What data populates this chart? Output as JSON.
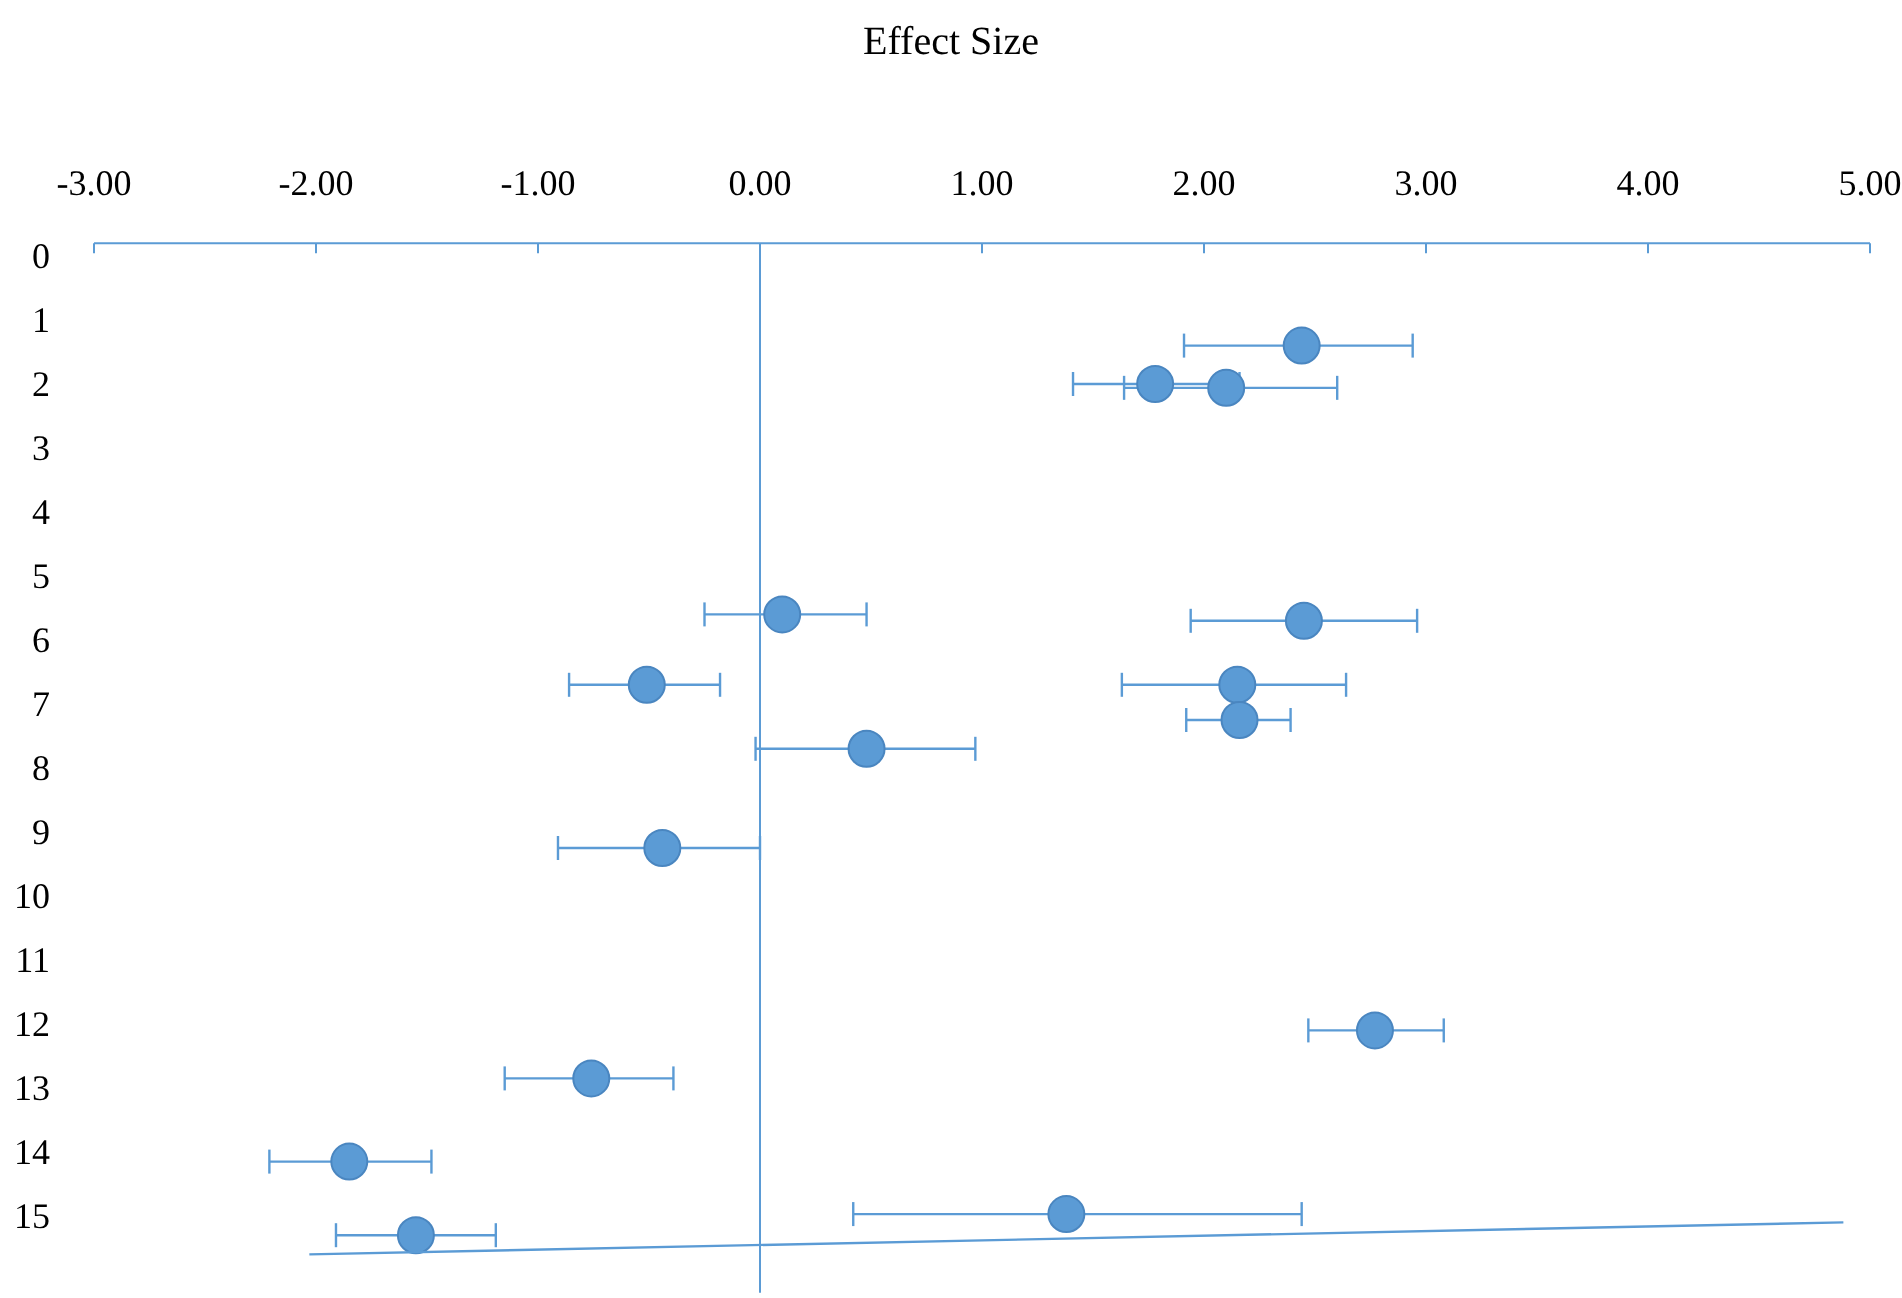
{
  "chart_data": {
    "type": "bubble",
    "title": "Effect Size",
    "xlim": [
      -3,
      5
    ],
    "xticks": [
      {
        "value": -3,
        "label": "-3.00"
      },
      {
        "value": -2,
        "label": "-2.00"
      },
      {
        "value": -1,
        "label": "-1.00"
      },
      {
        "value": 0,
        "label": "0.00"
      },
      {
        "value": 1,
        "label": "1.00"
      },
      {
        "value": 2,
        "label": "2.00"
      },
      {
        "value": 3,
        "label": "3.00"
      },
      {
        "value": 4,
        "label": "4.00"
      },
      {
        "value": 5,
        "label": "5.00"
      }
    ],
    "ylim": [
      16.2,
      -0.2
    ],
    "yticks": [
      0,
      1,
      2,
      3,
      4,
      5,
      6,
      7,
      8,
      9,
      10,
      11,
      12,
      13,
      14,
      15
    ],
    "grid": false,
    "ref_lines": [
      {
        "axis": "x",
        "value": 0,
        "color": "#5b9bd5"
      }
    ],
    "series": [
      {
        "color": "#5b9bd5",
        "x": [
          2.44,
          1.78,
          2.1,
          0.1,
          2.45,
          -0.51,
          2.15,
          2.16,
          0.48,
          -0.44,
          2.77,
          -0.76,
          -1.85,
          1.38,
          -1.55
        ],
        "values": [
          1.4,
          2.0,
          2.06,
          5.6,
          5.7,
          6.7,
          6.7,
          7.25,
          7.7,
          9.25,
          12.1,
          12.85,
          14.15,
          14.97,
          15.3
        ],
        "xerrors": [
          [
            1.91,
            2.94
          ],
          [
            1.41,
            2.16
          ],
          [
            1.64,
            2.6
          ],
          [
            -0.25,
            0.48
          ],
          [
            1.94,
            2.96
          ],
          [
            -0.86,
            -0.18
          ],
          [
            1.63,
            2.64
          ],
          [
            1.92,
            2.39
          ],
          [
            -0.02,
            0.97
          ],
          [
            -0.91,
            0
          ],
          [
            2.47,
            3.08
          ],
          [
            -1.15,
            -0.39
          ],
          [
            -2.21,
            -1.48
          ],
          [
            0.42,
            2.44
          ],
          [
            -1.91,
            -1.19
          ]
        ]
      },
      {
        "type": "line",
        "color": "#5b9bd5",
        "x": [
          -2.03,
          4.88
        ],
        "values": [
          15.6,
          15.1
        ]
      }
    ]
  }
}
